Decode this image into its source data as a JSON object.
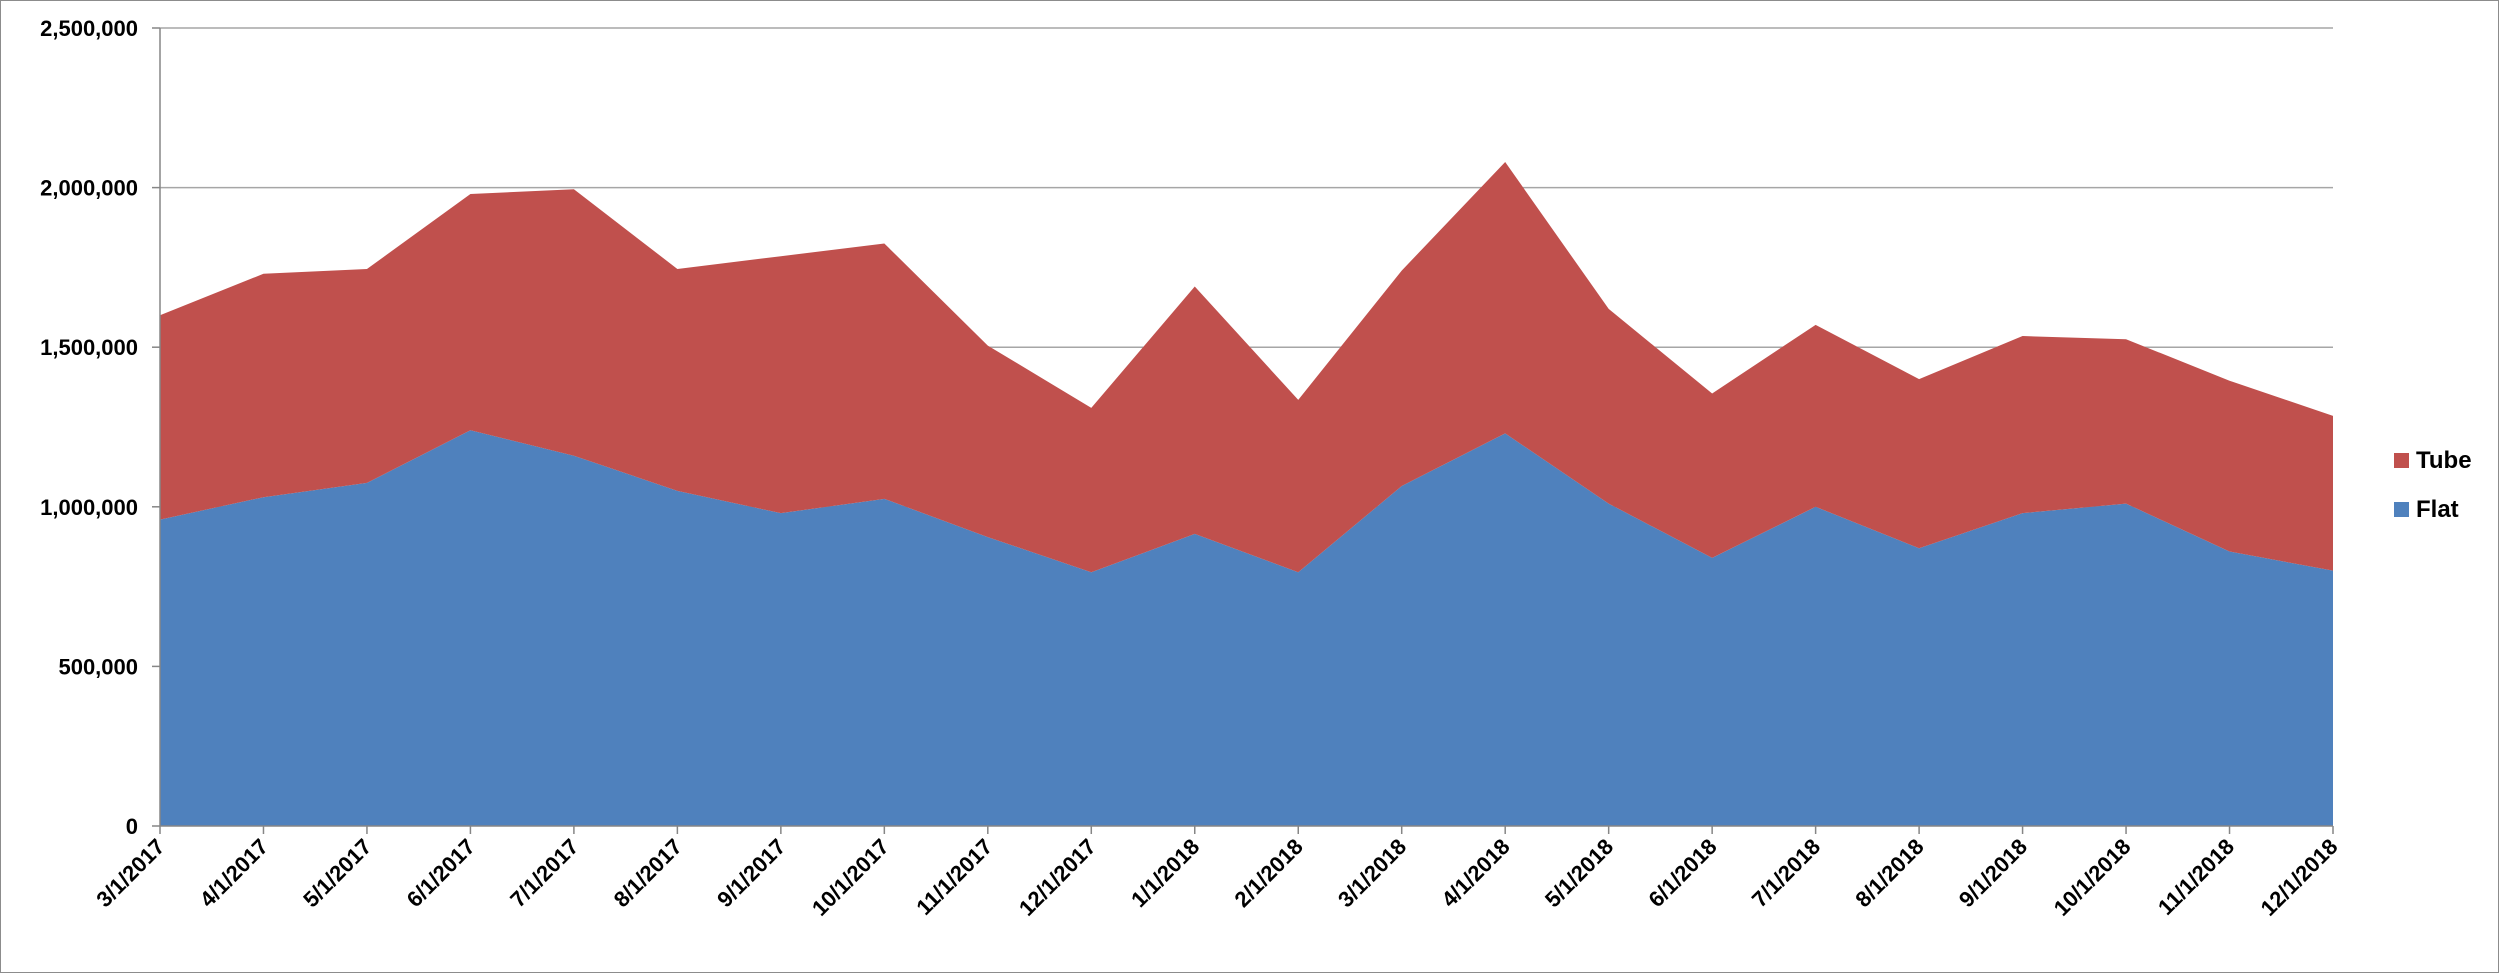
{
  "chart_data": {
    "type": "area",
    "stacked": true,
    "title": "",
    "xlabel": "",
    "ylabel": "",
    "categories": [
      "3/1/2017",
      "4/1/2017",
      "5/1/2017",
      "6/1/2017",
      "7/1/2017",
      "8/1/2017",
      "9/1/2017",
      "10/1/2017",
      "11/1/2017",
      "12/1/2017",
      "1/1/2018",
      "2/1/2018",
      "3/1/2018",
      "4/1/2018",
      "5/1/2018",
      "6/1/2018",
      "7/1/2018",
      "8/1/2018",
      "9/1/2018",
      "10/1/2018",
      "11/1/2018",
      "12/1/2018"
    ],
    "series": [
      {
        "name": "Flat",
        "color": "#4f81bd",
        "values": [
          960000,
          1030000,
          1075000,
          1240000,
          1160000,
          1050000,
          980000,
          1025000,
          905000,
          795000,
          915000,
          795000,
          1065000,
          1230000,
          1010000,
          840000,
          1000000,
          870000,
          980000,
          1010000,
          860000,
          800000
        ]
      },
      {
        "name": "Tube",
        "color": "#c0504d",
        "values": [
          640000,
          700000,
          670000,
          740000,
          835000,
          695000,
          805000,
          800000,
          600000,
          515000,
          775000,
          540000,
          675000,
          850000,
          610000,
          515000,
          570000,
          530000,
          555000,
          515000,
          535000,
          485000
        ]
      }
    ],
    "ylim": [
      0,
      2500000
    ],
    "yticks": [
      "0",
      "500,000",
      "1,000,000",
      "1,500,000",
      "2,000,000",
      "2,500,000"
    ],
    "ytick_values": [
      0,
      500000,
      1000000,
      1500000,
      2000000,
      2500000
    ],
    "grid": true,
    "legend_position": "right",
    "legend": [
      {
        "name": "Tube",
        "color": "#c0504d"
      },
      {
        "name": "Flat",
        "color": "#4f81bd"
      }
    ]
  }
}
